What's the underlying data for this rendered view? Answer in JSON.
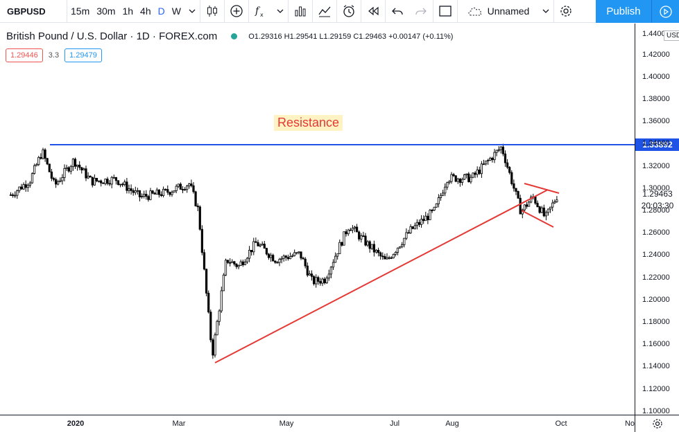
{
  "toolbar": {
    "symbol": "GBPUSD",
    "intervals": [
      "15m",
      "30m",
      "1h",
      "4h",
      "D",
      "W"
    ],
    "active_interval": "D",
    "layout_name": "Unnamed",
    "publish_label": "Publish",
    "icons": [
      "chevron-down-icon",
      "candles-icon",
      "add-compare-icon",
      "fx-indicators-icon",
      "chevron-down-icon",
      "bar-chart-icon",
      "line-chart-icon",
      "alert-icon",
      "replay-icon",
      "undo-icon",
      "redo-icon",
      "fullscreen-icon",
      "cloud-icon",
      "chevron-down-icon",
      "settings-icon",
      "play-icon"
    ]
  },
  "legend": {
    "title": "British Pound / U.S. Dollar · 1D · FOREX.com",
    "ohlc": "O1.29316  H1.29541  L1.29159  C1.29463  +0.00147 (+0.11%)",
    "bid": "1.29446",
    "spread": "3.3",
    "ask": "1.29479"
  },
  "annotations": {
    "resistance_text": "Resistance"
  },
  "y_axis": {
    "currency": "USD",
    "labels": [
      "1.42000",
      "1.40000",
      "1.38000",
      "1.36000",
      "1.34000",
      "1.32000",
      "1.30000",
      "1.28000",
      "1.26000",
      "1.24000",
      "1.22000",
      "1.20000",
      "1.18000",
      "1.16000",
      "1.14000",
      "1.12000",
      "1.10000"
    ],
    "top_label": "1.44000",
    "resistance_tag": "1.33892",
    "last_price": "1.29463",
    "countdown": "20:03:30"
  },
  "x_axis": {
    "labels": [
      {
        "text": "2020",
        "bold": true
      },
      {
        "text": "Mar",
        "bold": false
      },
      {
        "text": "May",
        "bold": false
      },
      {
        "text": "Jul",
        "bold": false
      },
      {
        "text": "Aug",
        "bold": false
      },
      {
        "text": "Oct",
        "bold": false
      },
      {
        "text": "No",
        "bold": false
      }
    ]
  },
  "colors": {
    "resistance_line": "#1e53e5",
    "trend_lines": "#e53935",
    "candles": "#000000",
    "accent": "#2196f3"
  },
  "chart_data": {
    "type": "candlestick",
    "title": "British Pound / U.S. Dollar · 1D · FOREX.com",
    "ylim": [
      1.1,
      1.44
    ],
    "resistance": 1.33892,
    "last_close": 1.29463,
    "x_ticks": [
      "2020",
      "Mar",
      "May",
      "Jul",
      "Aug",
      "Oct"
    ],
    "close_path": [
      {
        "x": "2019-11-25",
        "y": 1.294
      },
      {
        "x": "2019-12-06",
        "y": 1.307
      },
      {
        "x": "2019-12-13",
        "y": 1.333
      },
      {
        "x": "2019-12-20",
        "y": 1.302
      },
      {
        "x": "2019-12-31",
        "y": 1.325
      },
      {
        "x": "2020-01-10",
        "y": 1.306
      },
      {
        "x": "2020-01-24",
        "y": 1.308
      },
      {
        "x": "2020-02-07",
        "y": 1.292
      },
      {
        "x": "2020-02-21",
        "y": 1.296
      },
      {
        "x": "2020-03-06",
        "y": 1.304
      },
      {
        "x": "2020-03-11",
        "y": 1.28
      },
      {
        "x": "2020-03-19",
        "y": 1.15
      },
      {
        "x": "2020-03-27",
        "y": 1.236
      },
      {
        "x": "2020-04-03",
        "y": 1.23
      },
      {
        "x": "2020-04-13",
        "y": 1.251
      },
      {
        "x": "2020-04-24",
        "y": 1.236
      },
      {
        "x": "2020-05-08",
        "y": 1.241
      },
      {
        "x": "2020-05-15",
        "y": 1.216
      },
      {
        "x": "2020-05-22",
        "y": 1.218
      },
      {
        "x": "2020-06-05",
        "y": 1.267
      },
      {
        "x": "2020-06-12",
        "y": 1.255
      },
      {
        "x": "2020-06-26",
        "y": 1.234
      },
      {
        "x": "2020-07-10",
        "y": 1.262
      },
      {
        "x": "2020-07-24",
        "y": 1.28
      },
      {
        "x": "2020-07-31",
        "y": 1.309
      },
      {
        "x": "2020-08-14",
        "y": 1.309
      },
      {
        "x": "2020-08-31",
        "y": 1.337
      },
      {
        "x": "2020-09-11",
        "y": 1.279
      },
      {
        "x": "2020-09-18",
        "y": 1.292
      },
      {
        "x": "2020-09-25",
        "y": 1.273
      },
      {
        "x": "2020-10-02",
        "y": 1.294
      }
    ],
    "annotations": [
      "Resistance"
    ]
  }
}
